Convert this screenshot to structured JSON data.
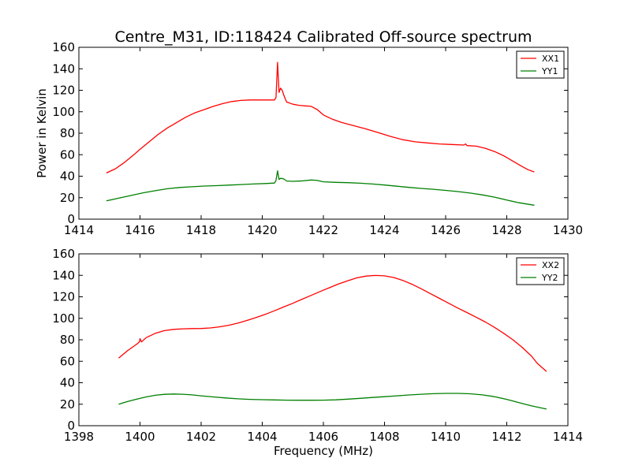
{
  "figure": {
    "title": "Centre_M31, ID:118424 Calibrated Off-source spectrum"
  },
  "chart_data": [
    {
      "type": "line",
      "title": "Centre_M31, ID:118424 Calibrated Off-source spectrum",
      "xlabel": "",
      "ylabel": "Power in Kelvin",
      "xlim": [
        1414,
        1430
      ],
      "ylim": [
        0,
        160
      ],
      "xticks": [
        1414,
        1416,
        1418,
        1420,
        1422,
        1424,
        1426,
        1428,
        1430
      ],
      "yticks": [
        0,
        20,
        40,
        60,
        80,
        100,
        120,
        140,
        160
      ],
      "legend_position": "top-right",
      "grid": false,
      "series": [
        {
          "name": "XX1",
          "color": "#ff0000",
          "x": [
            1414.9,
            1415.2,
            1415.5,
            1415.8,
            1416.0,
            1416.3,
            1416.6,
            1416.9,
            1417.2,
            1417.5,
            1417.8,
            1418.1,
            1418.4,
            1418.7,
            1419.0,
            1419.3,
            1419.6,
            1419.9,
            1420.2,
            1420.4,
            1420.45,
            1420.5,
            1420.55,
            1420.6,
            1420.65,
            1420.7,
            1420.75,
            1420.8,
            1420.9,
            1421.0,
            1421.2,
            1421.4,
            1421.6,
            1421.8,
            1422.0,
            1422.3,
            1422.6,
            1423.0,
            1423.4,
            1423.8,
            1424.2,
            1424.6,
            1425.0,
            1425.4,
            1425.8,
            1426.2,
            1426.6,
            1426.65,
            1426.7,
            1427.0,
            1427.3,
            1427.6,
            1427.9,
            1428.2,
            1428.5,
            1428.7,
            1428.9
          ],
          "y": [
            43,
            47,
            53,
            60,
            65,
            72,
            79,
            85,
            90,
            95,
            99,
            102,
            105,
            107.5,
            109.5,
            110.5,
            111,
            111,
            111,
            111,
            113,
            146,
            118,
            122,
            120,
            116,
            112,
            109,
            108,
            107,
            106,
            105.5,
            105,
            102,
            97,
            93,
            90,
            87,
            84,
            80.5,
            77,
            74,
            72,
            71,
            70,
            69.5,
            69,
            70,
            68.5,
            68,
            66,
            63,
            59,
            54,
            49,
            46,
            44
          ]
        },
        {
          "name": "YY1",
          "color": "#008000",
          "x": [
            1414.9,
            1415.3,
            1415.7,
            1416.1,
            1416.5,
            1416.9,
            1417.3,
            1417.7,
            1418.1,
            1418.5,
            1418.9,
            1419.3,
            1419.7,
            1420.1,
            1420.4,
            1420.45,
            1420.5,
            1420.55,
            1420.6,
            1420.7,
            1420.8,
            1421.0,
            1421.3,
            1421.6,
            1421.8,
            1422.0,
            1422.4,
            1422.8,
            1423.2,
            1423.6,
            1424.0,
            1424.4,
            1424.8,
            1425.2,
            1425.6,
            1426.0,
            1426.4,
            1426.8,
            1427.2,
            1427.6,
            1428.0,
            1428.4,
            1428.9
          ],
          "y": [
            17,
            19.5,
            22,
            24.5,
            26.5,
            28.3,
            29.5,
            30.2,
            30.8,
            31.2,
            31.7,
            32.2,
            32.7,
            33.2,
            33.6,
            36,
            45,
            37,
            38,
            37.5,
            35.5,
            35.2,
            35.6,
            36.5,
            36,
            34.8,
            34.3,
            34,
            33.5,
            32.7,
            31.8,
            30.7,
            29.6,
            28.6,
            27.8,
            26.8,
            25.7,
            24.3,
            22.6,
            20.5,
            17.8,
            15.3,
            13
          ]
        }
      ]
    },
    {
      "type": "line",
      "title": "",
      "xlabel": "Frequency (MHz)",
      "ylabel": "",
      "xlim": [
        1398,
        1414
      ],
      "ylim": [
        0,
        160
      ],
      "xticks": [
        1398,
        1400,
        1402,
        1404,
        1406,
        1408,
        1410,
        1412,
        1414
      ],
      "yticks": [
        0,
        20,
        40,
        60,
        80,
        100,
        120,
        140,
        160
      ],
      "legend_position": "top-right",
      "grid": false,
      "series": [
        {
          "name": "XX2",
          "color": "#ff0000",
          "x": [
            1399.3,
            1399.6,
            1399.9,
            1399.98,
            1400.0,
            1400.05,
            1400.2,
            1400.5,
            1400.8,
            1401.1,
            1401.4,
            1401.7,
            1402.0,
            1402.3,
            1402.6,
            1402.9,
            1403.2,
            1403.5,
            1403.8,
            1404.1,
            1404.4,
            1404.7,
            1405.0,
            1405.3,
            1405.6,
            1405.9,
            1406.2,
            1406.5,
            1406.8,
            1407.1,
            1407.4,
            1407.7,
            1408.0,
            1408.3,
            1408.6,
            1408.9,
            1409.2,
            1409.5,
            1409.8,
            1410.1,
            1410.4,
            1410.7,
            1411.0,
            1411.3,
            1411.6,
            1411.9,
            1412.2,
            1412.5,
            1412.8,
            1413.0,
            1413.3
          ],
          "y": [
            63,
            70,
            76,
            78,
            81,
            78,
            82,
            86,
            88.5,
            89.7,
            90.2,
            90.4,
            90.5,
            91,
            92,
            93.5,
            95.5,
            98,
            100.7,
            103.7,
            107,
            110.5,
            114,
            117.7,
            121.3,
            125,
            128.5,
            132,
            135,
            137.7,
            139.3,
            139.9,
            139.5,
            138,
            135.3,
            131.7,
            127.5,
            123,
            118.5,
            114,
            109.5,
            105.3,
            101,
            96.5,
            91.5,
            86,
            80,
            73,
            65,
            58,
            50.5
          ]
        },
        {
          "name": "YY2",
          "color": "#008000",
          "x": [
            1399.3,
            1399.6,
            1399.9,
            1400.2,
            1400.5,
            1400.8,
            1401.1,
            1401.4,
            1401.7,
            1402.0,
            1402.4,
            1402.8,
            1403.2,
            1403.6,
            1404.0,
            1404.4,
            1404.8,
            1405.2,
            1405.6,
            1406.0,
            1406.4,
            1406.8,
            1407.2,
            1407.6,
            1408.0,
            1408.4,
            1408.8,
            1409.2,
            1409.6,
            1410.0,
            1410.4,
            1410.8,
            1411.2,
            1411.6,
            1412.0,
            1412.4,
            1412.8,
            1413.3
          ],
          "y": [
            20,
            22.5,
            24.8,
            26.8,
            28.3,
            29.2,
            29.5,
            29.3,
            28.7,
            27.8,
            26.8,
            25.8,
            25,
            24.5,
            24.2,
            24,
            23.8,
            23.7,
            23.7,
            23.8,
            24.1,
            24.7,
            25.5,
            26.3,
            27,
            27.8,
            28.6,
            29.3,
            29.8,
            30.1,
            30.1,
            29.7,
            28.7,
            27,
            24.5,
            21.5,
            18.5,
            15.5
          ]
        }
      ]
    }
  ]
}
